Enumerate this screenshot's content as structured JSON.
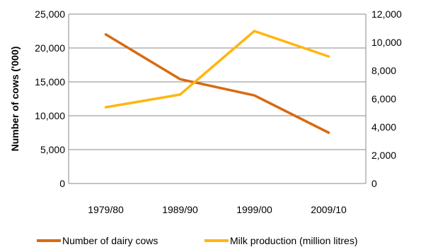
{
  "chart_data": {
    "type": "line",
    "categories": [
      "1979/80",
      "1989/90",
      "1999/00",
      "2009/10"
    ],
    "series": [
      {
        "name": "Number of dairy cows",
        "axis": "left",
        "color": "#D86A10",
        "values": [
          22000,
          15400,
          13000,
          7500
        ]
      },
      {
        "name": "Milk production (million litres)",
        "axis": "right",
        "color": "#FFB60F",
        "values": [
          5400,
          6300,
          10800,
          9000
        ]
      }
    ],
    "ylabel": "Number of cows  ('000)",
    "ylim": [
      0,
      25000
    ],
    "y2lim": [
      0,
      12000
    ],
    "yticks": [
      "0",
      "5,000",
      "10,000",
      "15,000",
      "20,000",
      "25,000"
    ],
    "y2ticks": [
      "0",
      "2,000",
      "4,000",
      "6,000",
      "8,000",
      "10,000",
      "12,000"
    ],
    "yticks_values": [
      0,
      5000,
      10000,
      15000,
      20000,
      25000
    ],
    "y2ticks_values": [
      0,
      2000,
      4000,
      6000,
      8000,
      10000,
      12000
    ],
    "grid": true,
    "legend_position": "bottom",
    "gridline_color": "#888888"
  }
}
